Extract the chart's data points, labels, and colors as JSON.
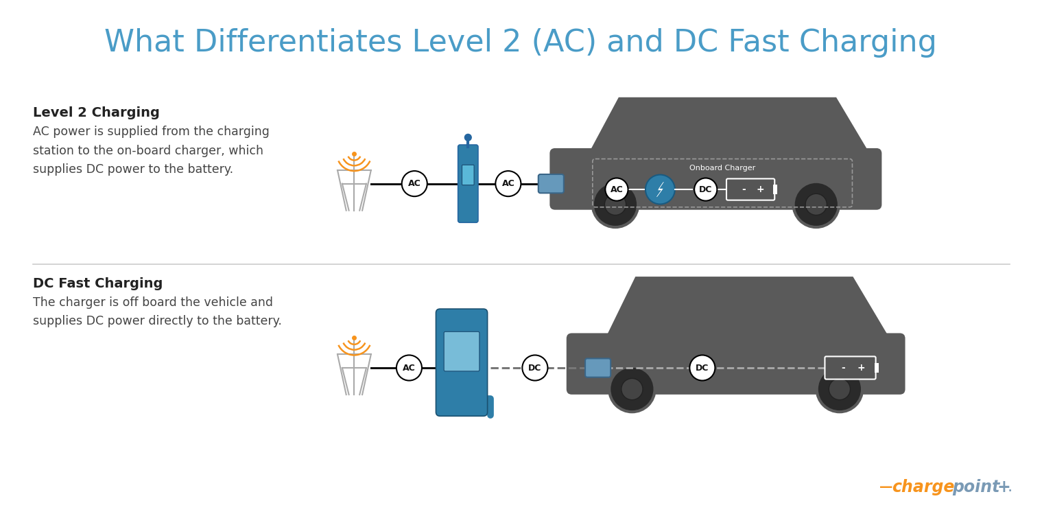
{
  "title": "What Differentiates Level 2 (AC) and DC Fast Charging",
  "title_color": "#4a9cc7",
  "title_fontsize": 32,
  "bg_color": "#ffffff",
  "divider_color": "#cccccc",
  "section1_heading": "Level 2 Charging",
  "section1_body": "AC power is supplied from the charging\nstation to the on-board charger, which\nsupplies DC power to the battery.",
  "section2_heading": "DC Fast Charging",
  "section2_body": "The charger is off board the vehicle and\nsupplies DC power directly to the battery.",
  "heading_color": "#222222",
  "body_color": "#444444",
  "orange_color": "#f7941d",
  "blue_color": "#2e7ea8",
  "dark_blue": "#2566a0",
  "gray_car": "#5a5a5a",
  "light_gray": "#aaaaaa",
  "chargepoint_orange": "#f7941d",
  "chargepoint_blue": "#7a9ab5",
  "onboard_label": "Onboard Charger",
  "ac_label": "AC",
  "dc_label": "DC"
}
